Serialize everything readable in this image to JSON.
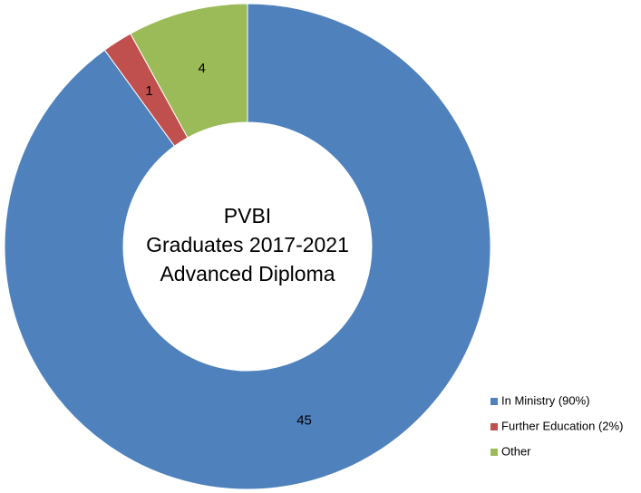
{
  "chart_data": {
    "type": "donut",
    "title": [
      "PVBI",
      "Graduates 2017-2021",
      "Advanced Diploma"
    ],
    "categories": [
      "In Ministry (90%)",
      "Further Education (2%)",
      "Other"
    ],
    "values": [
      45,
      1,
      4
    ],
    "colors": [
      "#4f81bd",
      "#c0504d",
      "#9bbb59"
    ],
    "legend": "bottom-right"
  }
}
